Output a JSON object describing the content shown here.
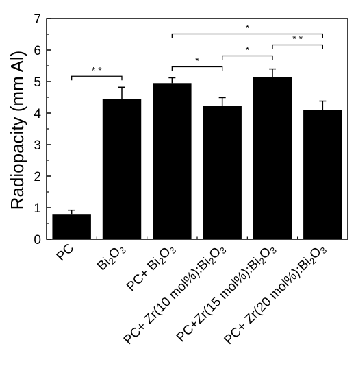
{
  "chart_data": {
    "type": "bar",
    "title": "",
    "xlabel": "",
    "ylabel": "Radiopacity (mm Al)",
    "ylim": [
      0,
      7
    ],
    "yticks": [
      0,
      1,
      2,
      3,
      4,
      5,
      6,
      7
    ],
    "grid": false,
    "legend": "none",
    "bar_color": "#000000",
    "categories": [
      [
        {
          "t": "PC"
        }
      ],
      [
        {
          "t": "Bi"
        },
        {
          "t": "2",
          "sub": true
        },
        {
          "t": "O"
        },
        {
          "t": "3",
          "sub": true
        }
      ],
      [
        {
          "t": "PC+ Bi"
        },
        {
          "t": "2",
          "sub": true
        },
        {
          "t": "O"
        },
        {
          "t": "3",
          "sub": true
        }
      ],
      [
        {
          "t": "PC+ Zr(10 mol%):Bi"
        },
        {
          "t": "2",
          "sub": true
        },
        {
          "t": "O"
        },
        {
          "t": "3",
          "sub": true
        }
      ],
      [
        {
          "t": "PC+Zr(15 mol%):Bi"
        },
        {
          "t": "2",
          "sub": true
        },
        {
          "t": "O"
        },
        {
          "t": "3",
          "sub": true
        }
      ],
      [
        {
          "t": "PC+ Zr(20 mol%):Bi"
        },
        {
          "t": "2",
          "sub": true
        },
        {
          "t": "O"
        },
        {
          "t": "3",
          "sub": true
        }
      ]
    ],
    "values": [
      0.8,
      4.45,
      4.95,
      4.22,
      5.15,
      4.1
    ],
    "errors": [
      0.12,
      0.37,
      0.17,
      0.27,
      0.25,
      0.28
    ],
    "significance": [
      {
        "from": 0,
        "to": 1,
        "label": "* *"
      },
      {
        "from": 2,
        "to": 3,
        "label": "*"
      },
      {
        "from": 3,
        "to": 4,
        "label": "*"
      },
      {
        "from": 4,
        "to": 5,
        "label": "* *"
      },
      {
        "from": 2,
        "to": 5,
        "label": "*"
      }
    ]
  }
}
